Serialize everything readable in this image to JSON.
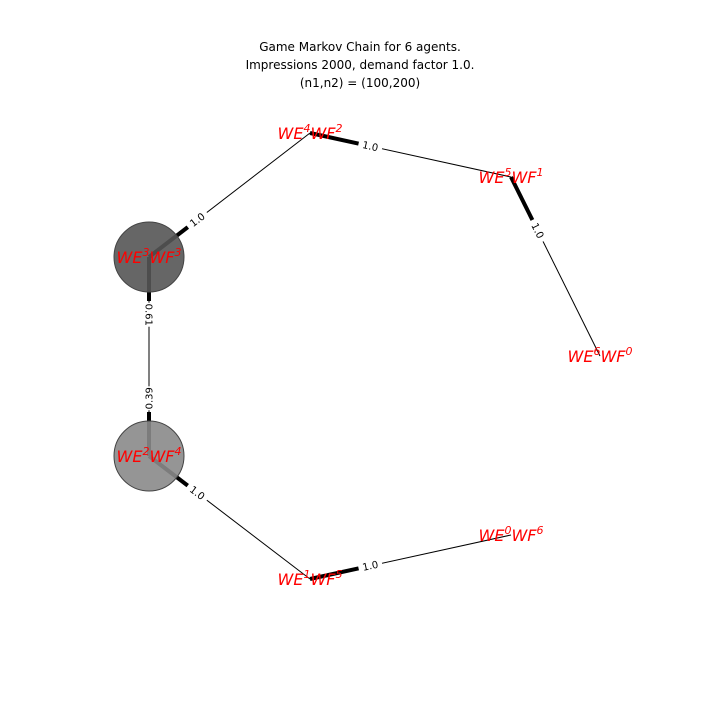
{
  "title": {
    "line1": "Game Markov Chain for 6 agents.",
    "line2": "Impressions 2000, demand factor 1.0.",
    "line3": "(n1,n2) = (100,200)"
  },
  "nodes": [
    {
      "id": "n42",
      "e": "4",
      "f": "2",
      "occupancy": 0
    },
    {
      "id": "n51",
      "e": "5",
      "f": "1",
      "occupancy": 0
    },
    {
      "id": "n60",
      "e": "6",
      "f": "0",
      "occupancy": 0
    },
    {
      "id": "n33",
      "e": "3",
      "f": "3",
      "occupancy": 0.61
    },
    {
      "id": "n24",
      "e": "2",
      "f": "4",
      "occupancy": 0.39
    },
    {
      "id": "n15",
      "e": "1",
      "f": "5",
      "occupancy": 0
    },
    {
      "id": "n06",
      "e": "0",
      "f": "6",
      "occupancy": 0
    }
  ],
  "edges": [
    {
      "from": "n33",
      "to": "n42",
      "label": "1.0"
    },
    {
      "from": "n42",
      "to": "n51",
      "label": "1.0"
    },
    {
      "from": "n51",
      "to": "n60",
      "label": "1.0"
    },
    {
      "from": "n33",
      "to": "n24",
      "label": "0.61"
    },
    {
      "from": "n24",
      "to": "n33",
      "label": "0.39"
    },
    {
      "from": "n24",
      "to": "n15",
      "label": "1.0"
    },
    {
      "from": "n15",
      "to": "n06",
      "label": "1.0"
    }
  ],
  "colors": {
    "label": "#ff0000",
    "edge": "#000000",
    "node_high": "#555555",
    "node_low": "#8a8a8a"
  }
}
